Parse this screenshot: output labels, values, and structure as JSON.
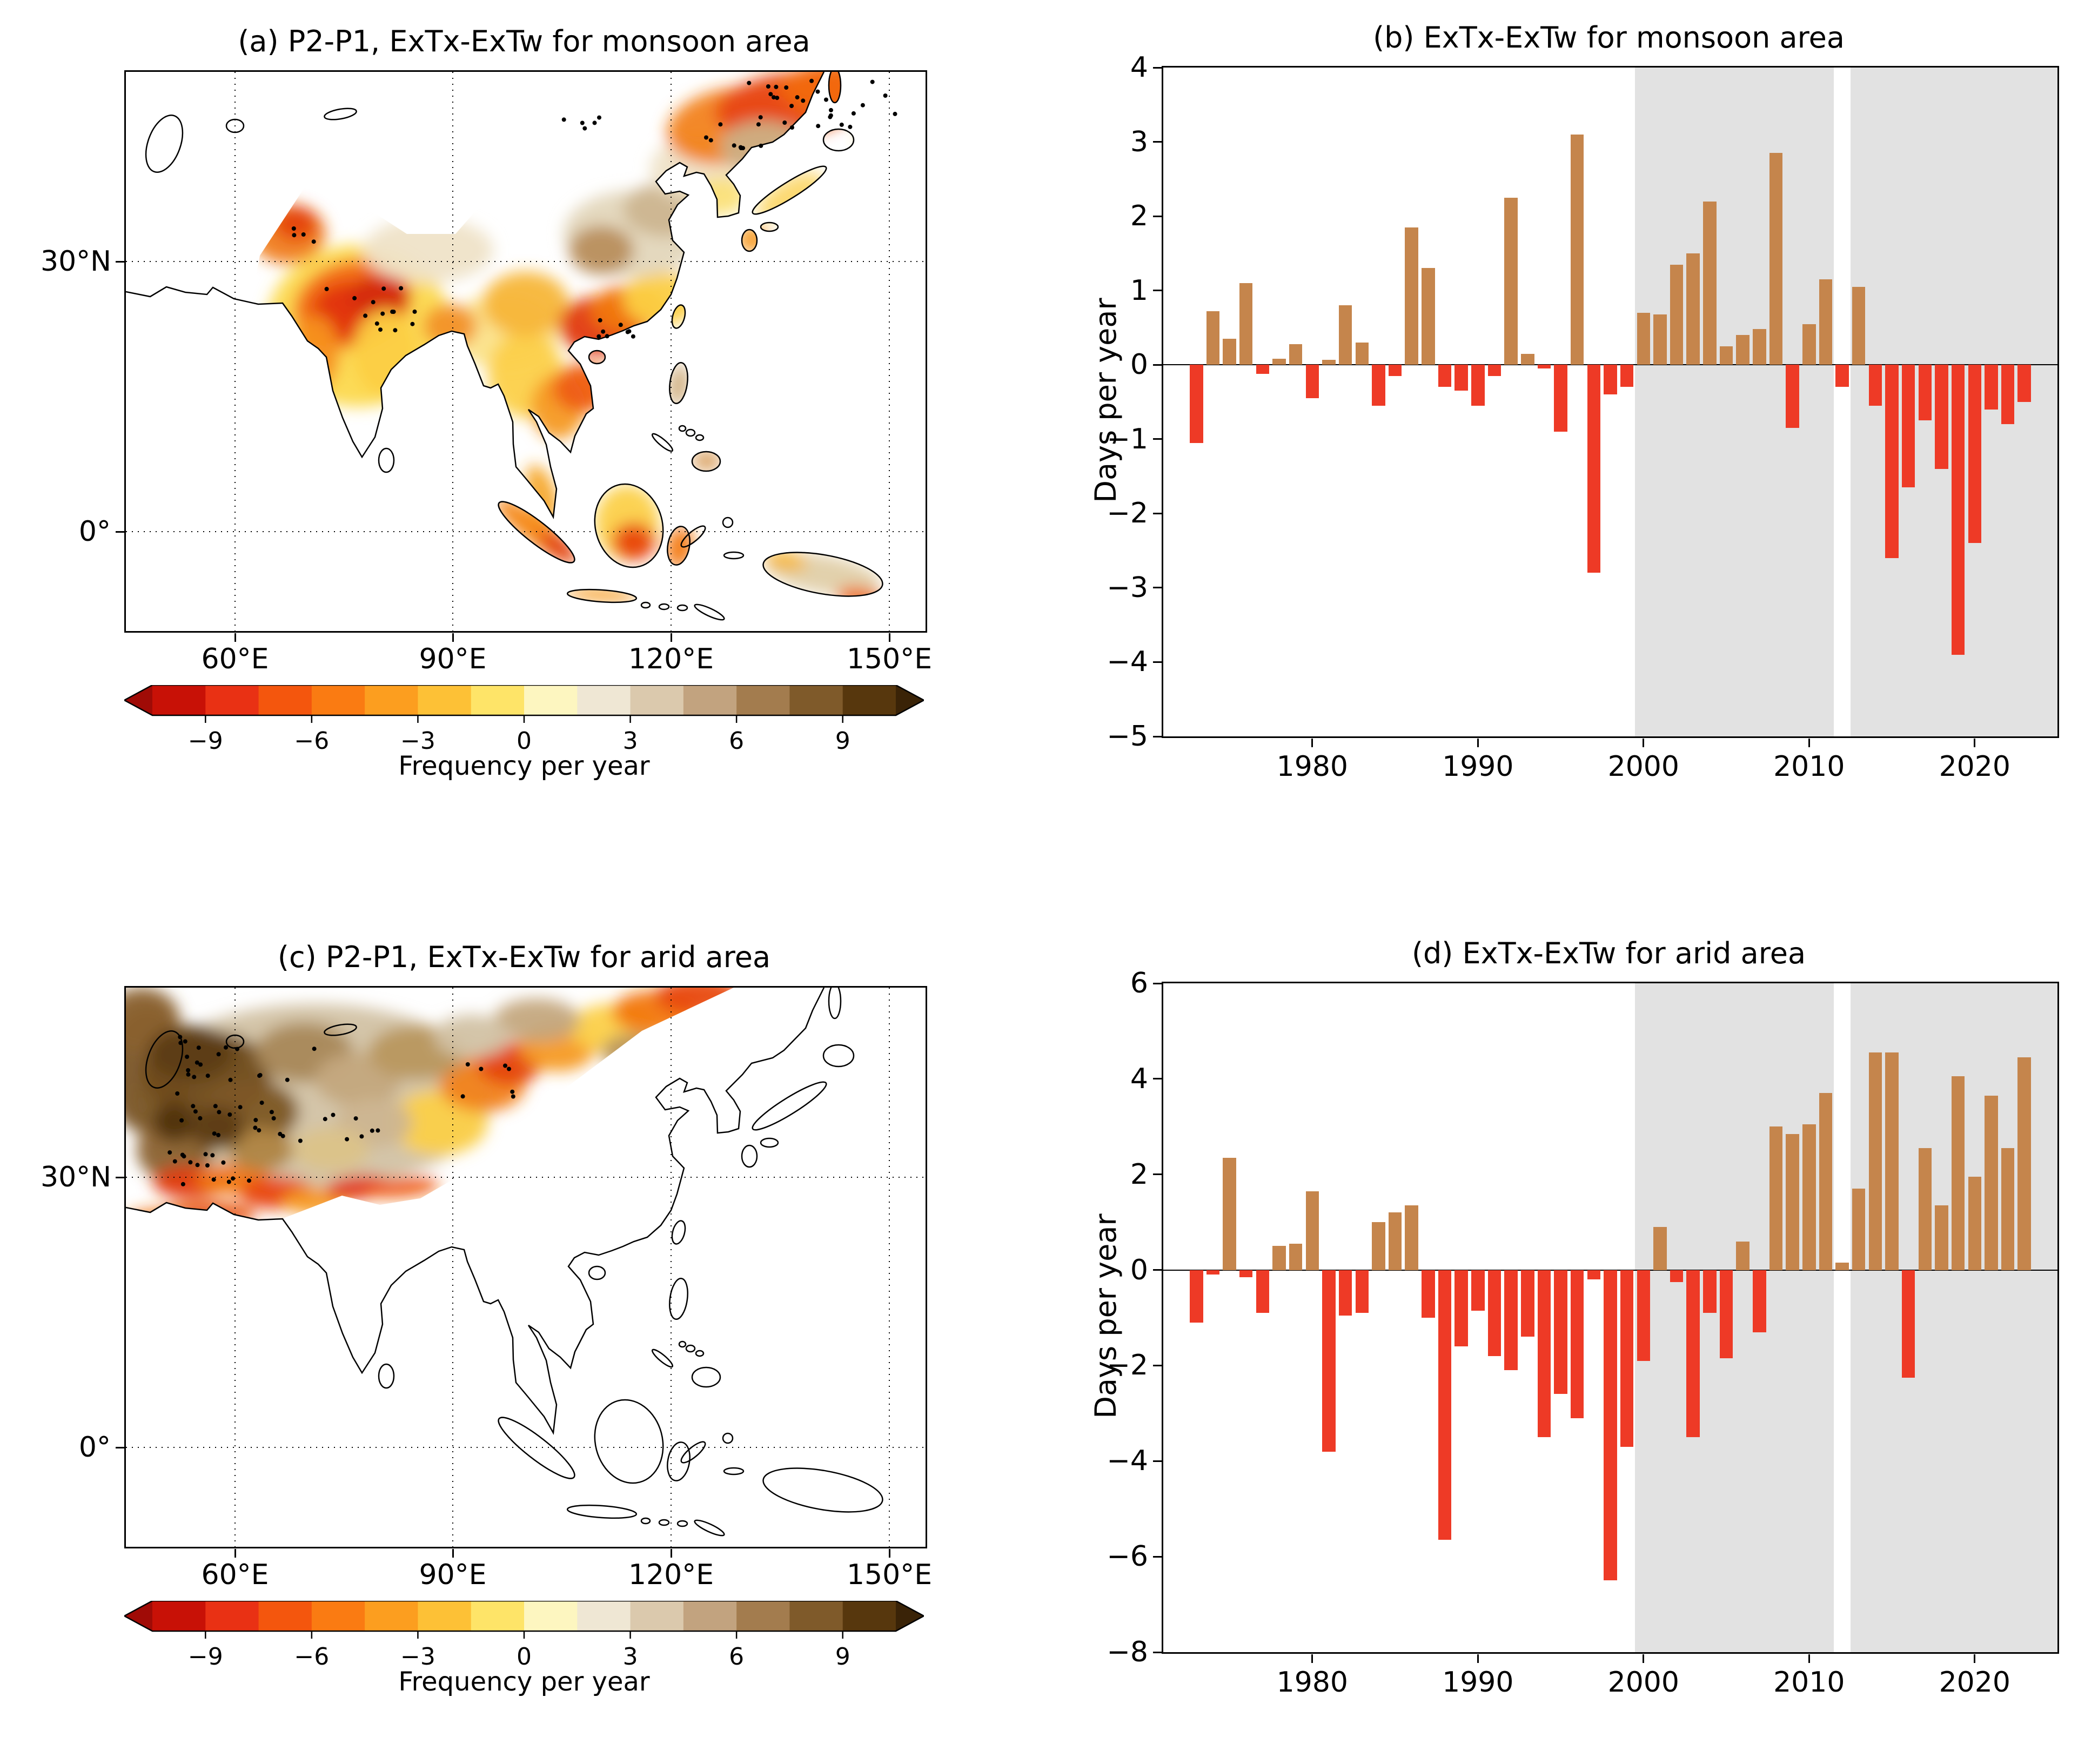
{
  "maps": {
    "a": {
      "title": "(a) P2-P1, ExTx-ExTw for monsoon area"
    },
    "c": {
      "title": "(c) P2-P1, ExTx-ExTw for arid area"
    },
    "x_tick_labels": [
      "60°E",
      "90°E",
      "120°E",
      "150°E"
    ],
    "y_tick_labels": [
      "30°N",
      "0°"
    ],
    "colorbar": {
      "label": "Frequency per year",
      "tick_labels": [
        "−9",
        "−6",
        "−3",
        "0",
        "3",
        "6",
        "9"
      ],
      "segment_colors": [
        "#c81106",
        "#e93114",
        "#f4560d",
        "#fa7b12",
        "#fc9e1f",
        "#fdc136",
        "#fee468",
        "#fdf6c0",
        "#efe7d4",
        "#dbc9ad",
        "#c2a37f",
        "#a37c4e",
        "#7f5a2a",
        "#57370d"
      ],
      "left_arrow_color": "#a00b06",
      "right_arrow_color": "#3a2307"
    }
  },
  "chart_data": [
    {
      "panel": "b",
      "type": "bar",
      "title": "(b) ExTx-ExTw for monsoon area",
      "ylabel": "Days per year",
      "years": [
        1973,
        1974,
        1975,
        1976,
        1977,
        1978,
        1979,
        1980,
        1981,
        1982,
        1983,
        1984,
        1985,
        1986,
        1987,
        1988,
        1989,
        1990,
        1991,
        1992,
        1993,
        1994,
        1995,
        1996,
        1997,
        1998,
        1999,
        2000,
        2001,
        2002,
        2003,
        2004,
        2005,
        2006,
        2007,
        2008,
        2009,
        2010,
        2011,
        2012,
        2013,
        2014,
        2015,
        2016,
        2017,
        2018,
        2019,
        2020,
        2021,
        2022,
        2023
      ],
      "values": [
        -1.05,
        0.72,
        0.35,
        1.1,
        -0.12,
        0.08,
        0.28,
        -0.45,
        0.07,
        0.8,
        0.3,
        -0.55,
        -0.15,
        1.85,
        1.3,
        -0.3,
        -0.35,
        -0.55,
        -0.15,
        2.25,
        0.15,
        -0.05,
        -0.9,
        3.1,
        -2.8,
        -0.4,
        -0.3,
        0.7,
        0.68,
        1.35,
        1.5,
        2.2,
        0.25,
        0.4,
        0.48,
        2.85,
        -0.85,
        0.55,
        1.15,
        -0.3,
        1.05,
        -0.55,
        -2.6,
        -1.65,
        -0.75,
        -1.4,
        -3.9,
        -2.4,
        -0.6,
        -0.8,
        -0.5
      ],
      "ylim": [
        -5,
        4
      ],
      "yticks": [
        -5,
        -4,
        -3,
        -2,
        -1,
        0,
        1,
        2,
        3,
        4
      ],
      "xticks": [
        1980,
        1990,
        2000,
        2010,
        2020
      ],
      "xlim": [
        1971,
        2025
      ],
      "bar_width": 0.8,
      "shaded_spans": [
        [
          1999.5,
          2011.5
        ],
        [
          2012.5,
          2025
        ]
      ],
      "positive_color": "#c5854c",
      "negative_color": "#ee3a26",
      "shade_color": "#e2e2e2",
      "grid": false,
      "legend": "none"
    },
    {
      "panel": "d",
      "type": "bar",
      "title": "(d) ExTx-ExTw for arid area",
      "ylabel": "Days per year",
      "years": [
        1973,
        1974,
        1975,
        1976,
        1977,
        1978,
        1979,
        1980,
        1981,
        1982,
        1983,
        1984,
        1985,
        1986,
        1987,
        1988,
        1989,
        1990,
        1991,
        1992,
        1993,
        1994,
        1995,
        1996,
        1997,
        1998,
        1999,
        2000,
        2001,
        2002,
        2003,
        2004,
        2005,
        2006,
        2007,
        2008,
        2009,
        2010,
        2011,
        2012,
        2013,
        2014,
        2015,
        2016,
        2017,
        2018,
        2019,
        2020,
        2021,
        2022,
        2023
      ],
      "values": [
        -1.1,
        -0.1,
        2.35,
        -0.15,
        -0.9,
        0.5,
        0.55,
        1.65,
        -3.8,
        -0.95,
        -0.9,
        1.0,
        1.2,
        1.35,
        -1.0,
        -5.65,
        -1.6,
        -0.85,
        -1.8,
        -2.1,
        -1.4,
        -3.5,
        -2.6,
        -3.1,
        -0.2,
        -6.5,
        -3.7,
        -1.9,
        0.9,
        -0.25,
        -3.5,
        -0.9,
        -1.85,
        0.6,
        -1.3,
        3.0,
        2.85,
        3.05,
        3.7,
        0.15,
        1.7,
        4.55,
        4.55,
        -2.25,
        2.55,
        1.35,
        4.05,
        1.95,
        3.65,
        2.55,
        4.45
      ],
      "ylim": [
        -8,
        6
      ],
      "yticks": [
        -8,
        -6,
        -4,
        -2,
        0,
        2,
        4,
        6
      ],
      "xticks": [
        1980,
        1990,
        2000,
        2010,
        2020
      ],
      "xlim": [
        1971,
        2025
      ],
      "bar_width": 0.8,
      "shaded_spans": [
        [
          1999.5,
          2011.5
        ],
        [
          2012.5,
          2025
        ]
      ],
      "positive_color": "#c5854c",
      "negative_color": "#ee3a26",
      "shade_color": "#e2e2e2",
      "grid": false,
      "legend": "none"
    }
  ]
}
